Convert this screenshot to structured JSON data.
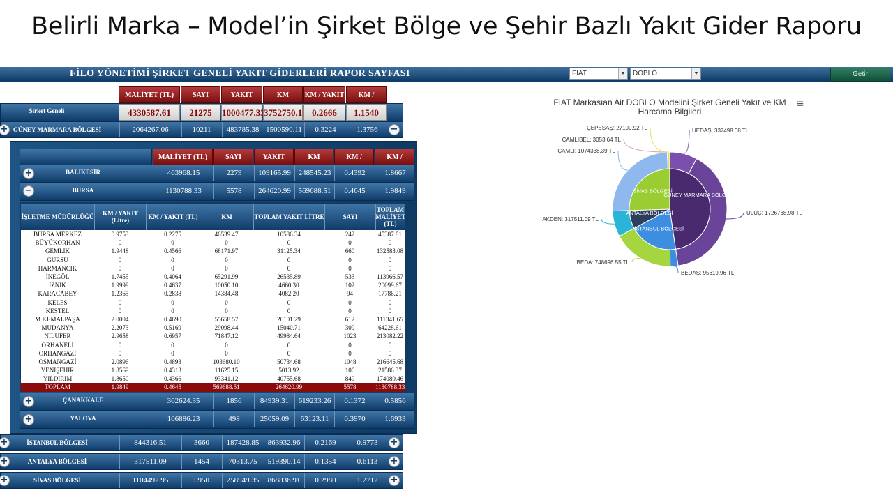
{
  "slide_title": "Belirli Marka – Model’in Şirket Bölge ve Şehir Bazlı Yakıt Gider Raporu",
  "topbar": {
    "title": "FİLO YÖNETİMİ ŞİRKET GENELİ YAKIT GİDERLERİ RAPOR SAYFASI",
    "brand_select": "FIAT",
    "model_select": "DOBLO",
    "button_label": "Getir"
  },
  "main_headers": [
    "MALİYET (TL)",
    "SAYI",
    "YAKIT (Litre)",
    "KM",
    "KM / YAKIT",
    "KM / YAKIT"
  ],
  "sirket": {
    "label": "Şirket Geneli",
    "values": [
      "4330587.61",
      "21275",
      "1000477.33",
      "3752750.12",
      "0.2666",
      "1.1540"
    ]
  },
  "regions": [
    {
      "label": "GÜNEY MARMARA BÖLGESİ",
      "values": [
        "2064267.06",
        "10211",
        "483785.38",
        "1500590.11",
        "0.3224",
        "1.3756"
      ]
    },
    {
      "label": "İSTANBUL BÖLGESİ",
      "values": [
        "844316.51",
        "3660",
        "187428.85",
        "863932.96",
        "0.2169",
        "0.9773"
      ]
    },
    {
      "label": "ANTALYA BÖLGESİ",
      "values": [
        "317511.09",
        "1454",
        "70313.75",
        "519390.14",
        "0.1354",
        "0.6113"
      ]
    },
    {
      "label": "SİVAS BÖLGESİ",
      "values": [
        "1104492.95",
        "5950",
        "258949.35",
        "868836.91",
        "0.2980",
        "1.2712"
      ]
    }
  ],
  "city_headers": [
    "MALİYET (TL)",
    "SAYI",
    "YAKIT",
    "KM",
    "KM / YAKIT",
    "KM / YAKIT"
  ],
  "cities": [
    {
      "label": "BALIKESİR",
      "values": [
        "463968.15",
        "2279",
        "109165.99",
        "248545.23",
        "0.4392",
        "1.8667"
      ]
    },
    {
      "label": "BURSA",
      "values": [
        "1130788.33",
        "5578",
        "264620.99",
        "569688.51",
        "0.4645",
        "1.9849"
      ]
    },
    {
      "label": "ÇANAKKALE",
      "values": [
        "362624.35",
        "1856",
        "84939.31",
        "619233.26",
        "0.1372",
        "0.5856"
      ]
    },
    {
      "label": "YALOVA",
      "values": [
        "106886.23",
        "498",
        "25059.09",
        "63123.11",
        "0.3970",
        "1.6933"
      ]
    }
  ],
  "detail_headers": [
    "İŞLETME MÜDÜRLÜĞÜ",
    "KM / YAKIT (Litre)",
    "KM / YAKIT (TL)",
    "KM",
    "TOPLAM YAKIT LİTRE",
    "SAYI",
    "TOPLAM MALİYET (TL)"
  ],
  "detail_rows": [
    [
      "BURSA MERKEZ",
      "0.9753",
      "0.2275",
      "46539.47",
      "10586.34",
      "242",
      "45387.81"
    ],
    [
      "BÜYÜKORHAN",
      "0",
      "0",
      "0",
      "0",
      "0",
      "0"
    ],
    [
      "GEMLİK",
      "1.9448",
      "0.4566",
      "68171.97",
      "31125.34",
      "660",
      "132583.08"
    ],
    [
      "GÜRSU",
      "0",
      "0",
      "0",
      "0",
      "0",
      "0"
    ],
    [
      "HARMANCIK",
      "0",
      "0",
      "0",
      "0",
      "0",
      "0"
    ],
    [
      "İNEGÖL",
      "1.7455",
      "0.4064",
      "65291.99",
      "26535.89",
      "533",
      "113966.57"
    ],
    [
      "İZNİK",
      "1.9999",
      "0.4637",
      "10050.10",
      "4660.30",
      "102",
      "20099.67"
    ],
    [
      "KARACABEY",
      "1.2365",
      "0.2838",
      "14384.48",
      "4082.20",
      "94",
      "17786.21"
    ],
    [
      "KELES",
      "0",
      "0",
      "0",
      "0",
      "0",
      "0"
    ],
    [
      "KESTEL",
      "0",
      "0",
      "0",
      "0",
      "0",
      "0"
    ],
    [
      "M.KEMALPAŞA",
      "2.0004",
      "0.4690",
      "55658.57",
      "26101.29",
      "612",
      "111341.65"
    ],
    [
      "MUDANYA",
      "2.2073",
      "0.5169",
      "29098.44",
      "15040.71",
      "309",
      "64228.61"
    ],
    [
      "NİLÜFER",
      "2.9658",
      "0.6957",
      "71847.12",
      "49984.64",
      "1023",
      "213082.22"
    ],
    [
      "ORHANELİ",
      "0",
      "0",
      "0",
      "0",
      "0",
      "0"
    ],
    [
      "ORHANGAZİ",
      "0",
      "0",
      "0",
      "0",
      "0",
      "0"
    ],
    [
      "OSMANGAZİ",
      "2.0896",
      "0.4893",
      "103680.10",
      "50734.68",
      "1048",
      "216645.68"
    ],
    [
      "YENİŞEHİR",
      "1.8569",
      "0.4313",
      "11625.15",
      "5013.92",
      "106",
      "21586.37"
    ],
    [
      "YILDIRIM",
      "1.8650",
      "0.4366",
      "93341.12",
      "40755.68",
      "849",
      "174080.46"
    ]
  ],
  "detail_total": [
    "TOPLAM",
    "1.9849",
    "0.4645",
    "569688.51",
    "264620.99",
    "5578",
    "1130788.33"
  ],
  "chart_data": {
    "type": "pie",
    "title": "FIAT Markasıan Ait DOBLO Modelini Şirket Geneli Yakıt ve KM Harcama Bilgileri",
    "inner": [
      {
        "name": "GÜNEY MARMARA BÖLGESİ",
        "value": 2064267.06,
        "color": "#4a2a6e"
      },
      {
        "name": "İSTANBUL BÖLGESİ",
        "value": 844316.51,
        "color": "#3d8ee0"
      },
      {
        "name": "ANTALYA BÖLGESİ",
        "value": 317511.09,
        "color": "#2c3e5c"
      },
      {
        "name": "SİVAS BÖLGESİ",
        "value": 1104492.95,
        "color": "#9acd32"
      }
    ],
    "outer": [
      {
        "name": "UEDAŞ",
        "value": 337498.08,
        "color": "#7a4fae"
      },
      {
        "name": "ULUÇ",
        "value": 1726768.98,
        "color": "#6a4498"
      },
      {
        "name": "BEDAŞ",
        "value": 95619.96,
        "color": "#3d8ee0"
      },
      {
        "name": "BEDA",
        "value": 748696.55,
        "color": "#a5d63f"
      },
      {
        "name": "AKDEN",
        "value": 317511.09,
        "color": "#29b6d6"
      },
      {
        "name": "ÇAMLI",
        "value": 1074338.39,
        "color": "#8fb8ef"
      },
      {
        "name": "ÇAMLIBEL",
        "value": 3053.64,
        "color": "#d9a0a0"
      },
      {
        "name": "ÇEPESAŞ",
        "value": 27100.92,
        "color": "#e2e060"
      }
    ],
    "outer_labels": [
      "UEDAŞ: 337498.08 TL",
      "ULUÇ: 1726768.98 TL",
      "BEDAŞ: 95619.96 TL",
      "BEDA: 748696.55 TL",
      "AKDEN: 317511.09 TL",
      "ÇAMLI: 1074338.39 TL",
      "ÇAMLIBEL: 3053.64 TL",
      "ÇEPESAŞ: 27100.92 TL"
    ],
    "inner_labels": [
      "GÜNEY MARMARA BÖLGESİ",
      "İSTANBUL BÖLGESİ",
      "ANTALYA BÖLGESİ",
      "SİVAS BÖLGESİ"
    ]
  }
}
